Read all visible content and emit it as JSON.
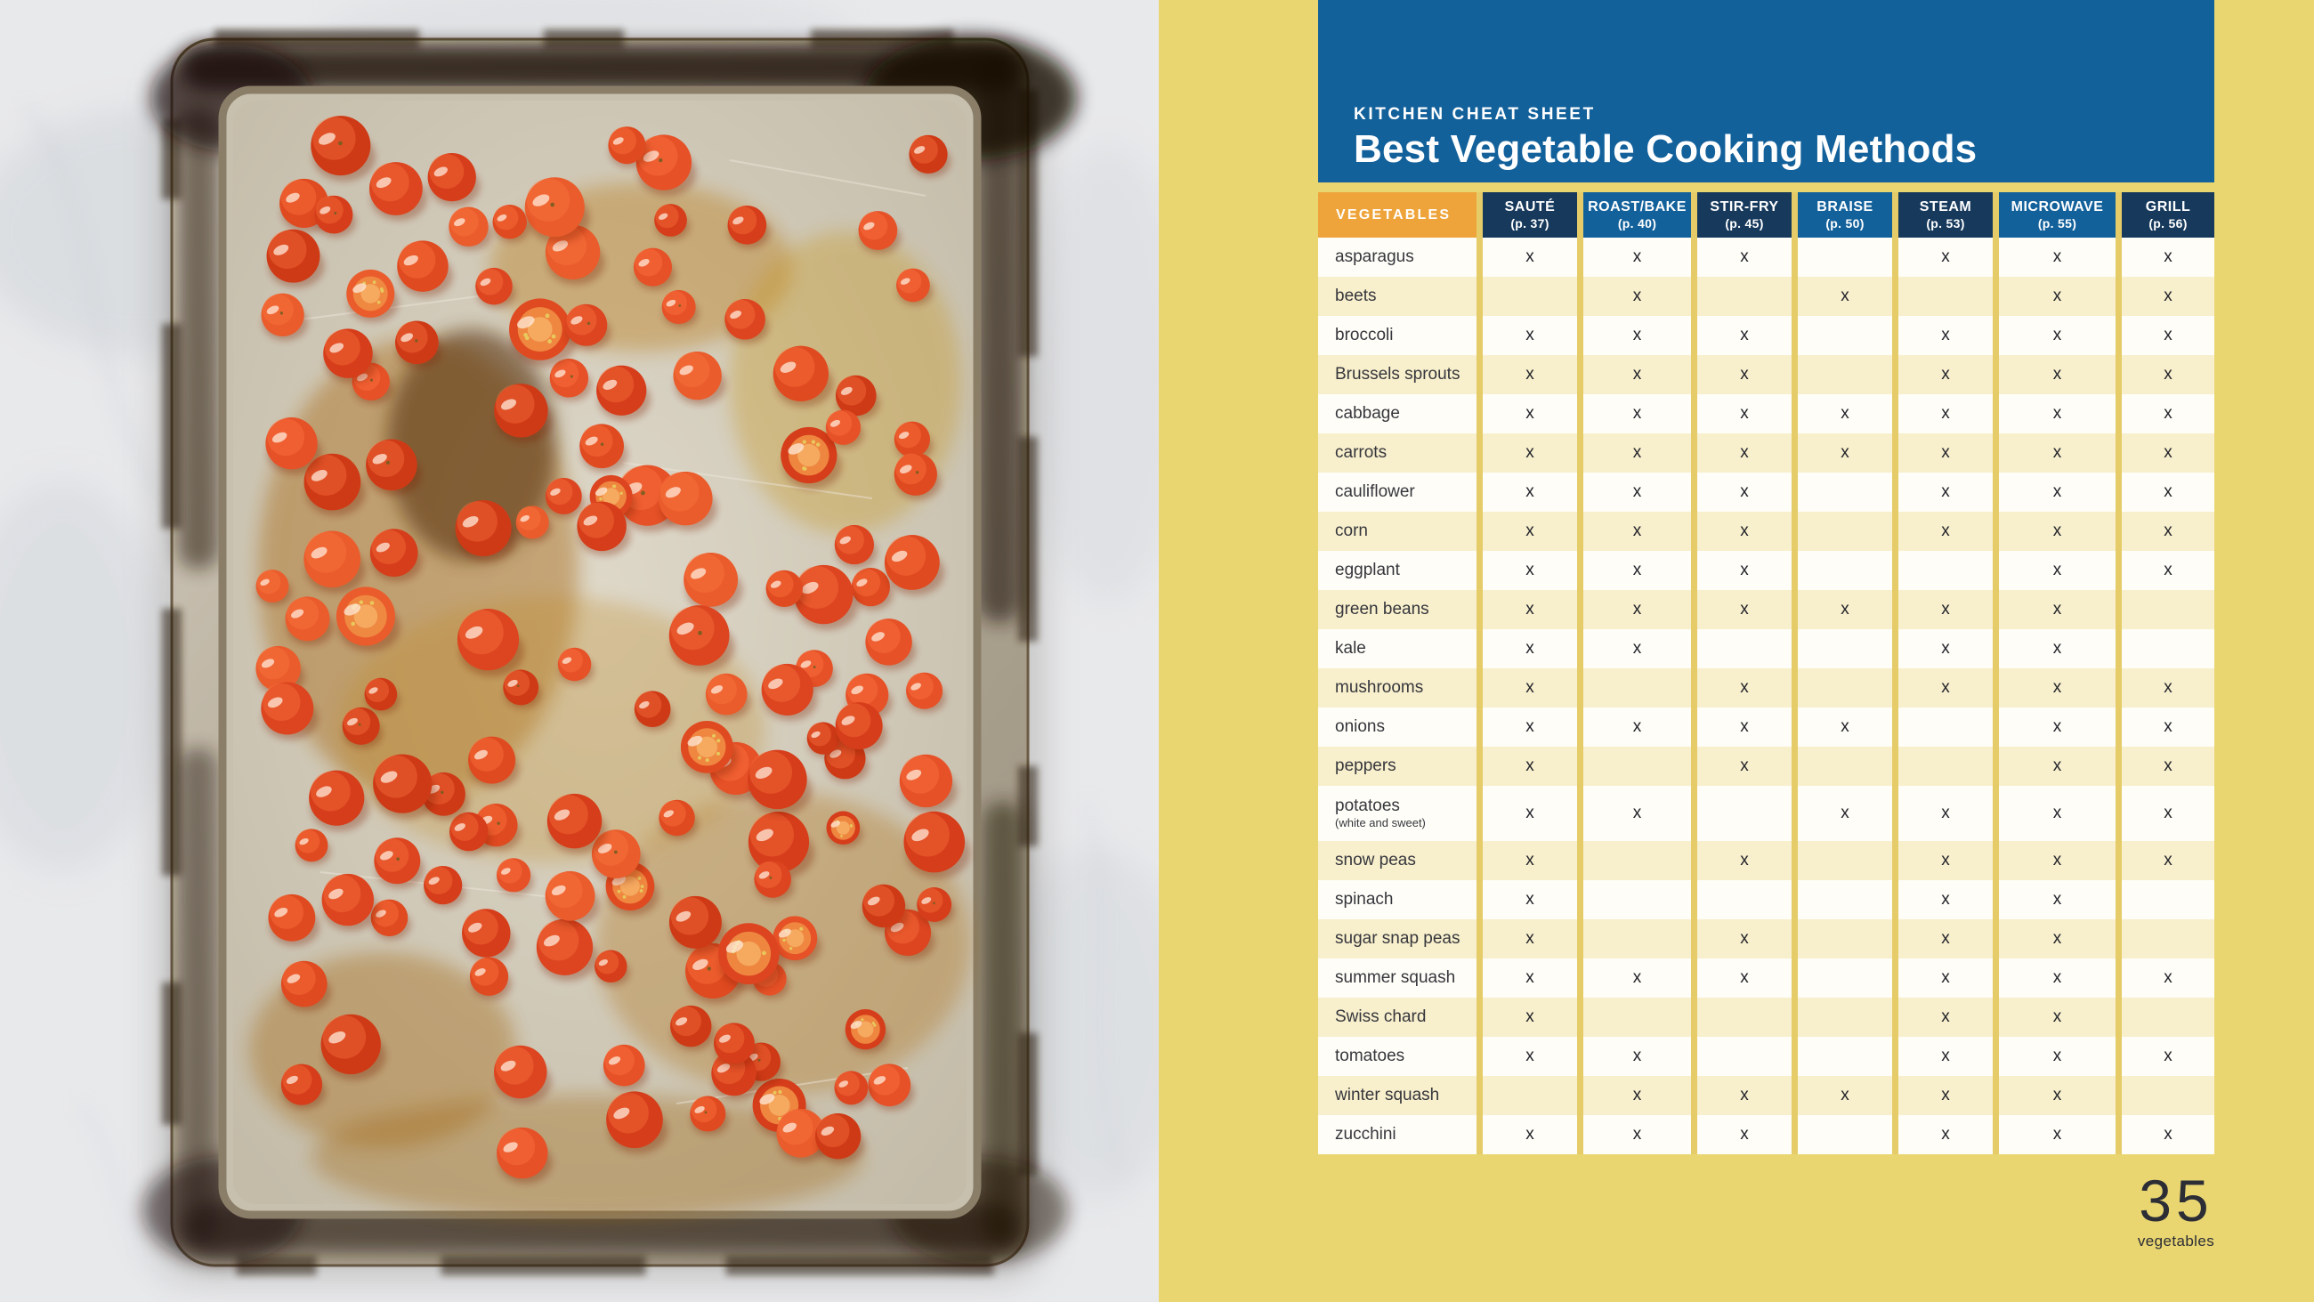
{
  "page": {
    "page_number": "35",
    "section": "vegetables",
    "photo_alt": "Roasted cherry tomatoes on a burnt rimmed sheet pan set on a white marble counter"
  },
  "cheat_sheet": {
    "eyebrow": "KITCHEN CHEAT SHEET",
    "title": "Best Vegetable Cooking Methods",
    "colors": {
      "banner_blue": "#13619b",
      "medium_blue": "#13619b",
      "dark_navy": "#16395c",
      "orange": "#eea43a",
      "page_yellow": "#e9d671",
      "separator_gold": "#e5cc68",
      "row_cream": "#f8efcc",
      "row_white": "#fefdf7"
    },
    "table": {
      "row_header": "VEGETABLES",
      "mark": "x",
      "columns": [
        {
          "label": "SAUTÉ",
          "page": "(p. 37)"
        },
        {
          "label": "ROAST/BAKE",
          "page": "(p. 40)"
        },
        {
          "label": "STIR-FRY",
          "page": "(p. 45)"
        },
        {
          "label": "BRAISE",
          "page": "(p. 50)"
        },
        {
          "label": "STEAM",
          "page": "(p. 53)"
        },
        {
          "label": "MICROWAVE",
          "page": "(p. 55)"
        },
        {
          "label": "GRILL",
          "page": "(p. 56)"
        }
      ],
      "rows": [
        {
          "name": "asparagus",
          "marks": [
            1,
            1,
            1,
            0,
            1,
            1,
            1
          ]
        },
        {
          "name": "beets",
          "marks": [
            0,
            1,
            0,
            1,
            0,
            1,
            1
          ]
        },
        {
          "name": "broccoli",
          "marks": [
            1,
            1,
            1,
            0,
            1,
            1,
            1
          ]
        },
        {
          "name": "Brussels sprouts",
          "marks": [
            1,
            1,
            1,
            0,
            1,
            1,
            1
          ]
        },
        {
          "name": "cabbage",
          "marks": [
            1,
            1,
            1,
            1,
            1,
            1,
            1
          ]
        },
        {
          "name": "carrots",
          "marks": [
            1,
            1,
            1,
            1,
            1,
            1,
            1
          ]
        },
        {
          "name": "cauliflower",
          "marks": [
            1,
            1,
            1,
            0,
            1,
            1,
            1
          ]
        },
        {
          "name": "corn",
          "marks": [
            1,
            1,
            1,
            0,
            1,
            1,
            1
          ]
        },
        {
          "name": "eggplant",
          "marks": [
            1,
            1,
            1,
            0,
            0,
            1,
            1
          ]
        },
        {
          "name": "green beans",
          "marks": [
            1,
            1,
            1,
            1,
            1,
            1,
            0
          ]
        },
        {
          "name": "kale",
          "marks": [
            1,
            1,
            0,
            0,
            1,
            1,
            0
          ]
        },
        {
          "name": "mushrooms",
          "marks": [
            1,
            0,
            1,
            0,
            1,
            1,
            1
          ]
        },
        {
          "name": "onions",
          "marks": [
            1,
            1,
            1,
            1,
            0,
            1,
            1
          ]
        },
        {
          "name": "peppers",
          "marks": [
            1,
            0,
            1,
            0,
            0,
            1,
            1
          ]
        },
        {
          "name": "potatoes",
          "note": "(white and sweet)",
          "marks": [
            1,
            1,
            0,
            1,
            1,
            1,
            1
          ]
        },
        {
          "name": "snow peas",
          "marks": [
            1,
            0,
            1,
            0,
            1,
            1,
            1
          ]
        },
        {
          "name": "spinach",
          "marks": [
            1,
            0,
            0,
            0,
            1,
            1,
            0
          ]
        },
        {
          "name": "sugar snap peas",
          "marks": [
            1,
            0,
            1,
            0,
            1,
            1,
            0
          ]
        },
        {
          "name": "summer squash",
          "marks": [
            1,
            1,
            1,
            0,
            1,
            1,
            1
          ]
        },
        {
          "name": "Swiss chard",
          "marks": [
            1,
            0,
            0,
            0,
            1,
            1,
            0
          ]
        },
        {
          "name": "tomatoes",
          "marks": [
            1,
            1,
            0,
            0,
            1,
            1,
            1
          ]
        },
        {
          "name": "winter squash",
          "marks": [
            0,
            1,
            1,
            1,
            1,
            1,
            0
          ]
        },
        {
          "name": "zucchini",
          "marks": [
            1,
            1,
            1,
            0,
            1,
            1,
            1
          ]
        }
      ]
    }
  }
}
